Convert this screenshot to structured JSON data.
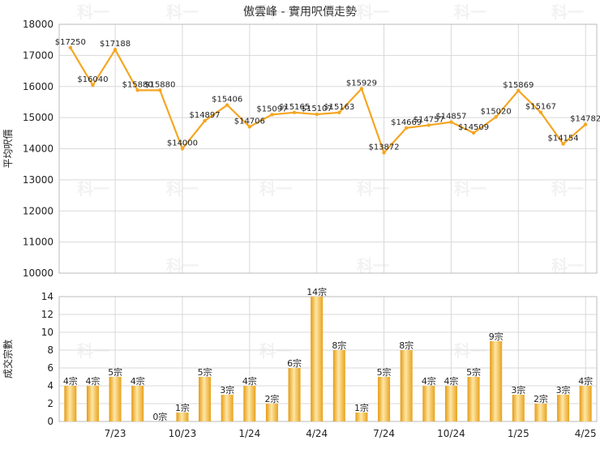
{
  "title": "傲雲峰 - 實用呎價走勢",
  "watermark": "科一",
  "colors": {
    "line": "#F5A623",
    "bar": "#F2B42D",
    "bar_light": "#FFE7A6",
    "grid": "#D9D9D9",
    "axis_text": "#222222"
  },
  "chart_data": [
    {
      "type": "line",
      "ylabel": "平均呎價",
      "ylim": [
        10000,
        18000
      ],
      "yticks": [
        "10000",
        "11000",
        "12000",
        "13000",
        "14000",
        "15000",
        "16000",
        "17000",
        "18000"
      ],
      "grid": true,
      "values": [
        17250,
        16040,
        17188,
        15880,
        15880,
        14000,
        14897,
        15406,
        14706,
        15097,
        15165,
        15107,
        15163,
        15929,
        13872,
        14669,
        14757,
        14857,
        14509,
        15020,
        15869,
        15167,
        14154,
        14782
      ],
      "labels": [
        "$17250",
        "$16040",
        "$17188",
        "$15880",
        "$15880",
        "$14000",
        "$14897",
        "$15406",
        "$14706",
        "$15097",
        "$15165",
        "$15107",
        "$15163",
        "$15929",
        "$13872",
        "$14669",
        "$14757",
        "$14857",
        "$14509",
        "$15020",
        "$15869",
        "$15167",
        "$14154",
        "$14782"
      ]
    },
    {
      "type": "bar",
      "ylabel": "成交宗數",
      "ylim": [
        0,
        14
      ],
      "yticks": [
        "0",
        "2",
        "4",
        "6",
        "8",
        "10",
        "12",
        "14"
      ],
      "grid": true,
      "values": [
        4,
        4,
        5,
        4,
        0,
        1,
        5,
        3,
        4,
        2,
        6,
        14,
        8,
        1,
        5,
        8,
        4,
        4,
        5,
        9,
        3,
        2,
        3,
        4
      ],
      "labels": [
        "4宗",
        "4宗",
        "5宗",
        "4宗",
        "0宗",
        "1宗",
        "5宗",
        "3宗",
        "4宗",
        "2宗",
        "6宗",
        "14宗",
        "8宗",
        "1宗",
        "5宗",
        "8宗",
        "4宗",
        "4宗",
        "5宗",
        "9宗",
        "3宗",
        "2宗",
        "3宗",
        "4宗"
      ],
      "xticks": [
        "7/23",
        "10/23",
        "1/24",
        "4/24",
        "7/24",
        "10/24",
        "1/25",
        "4/25"
      ]
    }
  ]
}
